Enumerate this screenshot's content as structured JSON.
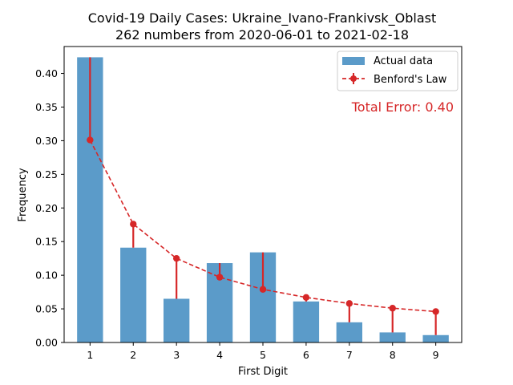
{
  "chart_data": {
    "type": "bar",
    "title": "Covid-19 Daily Cases: Ukraine_Ivano-Frankivsk_Oblast",
    "subtitle": "262 numbers from 2020-06-01 to 2021-02-18",
    "xlabel": "First Digit",
    "ylabel": "Frequency",
    "categories": [
      "1",
      "2",
      "3",
      "4",
      "5",
      "6",
      "7",
      "8",
      "9"
    ],
    "ylim": [
      0,
      0.44
    ],
    "yticks": [
      "0.00",
      "0.05",
      "0.10",
      "0.15",
      "0.20",
      "0.25",
      "0.30",
      "0.35",
      "0.40"
    ],
    "series": [
      {
        "name": "Actual data",
        "kind": "bar",
        "color": "#5b9bc9",
        "values": [
          0.424,
          0.141,
          0.065,
          0.118,
          0.134,
          0.061,
          0.03,
          0.015,
          0.011
        ]
      },
      {
        "name": "Benford's Law",
        "kind": "line",
        "color": "#d62728",
        "style": "dashed-with-markers",
        "values": [
          0.301,
          0.176,
          0.125,
          0.097,
          0.079,
          0.067,
          0.058,
          0.051,
          0.046
        ]
      }
    ],
    "annotation": "Total Error: 0.40",
    "annotation_color": "#d62728",
    "legend_position": "top-right",
    "grid": false
  }
}
